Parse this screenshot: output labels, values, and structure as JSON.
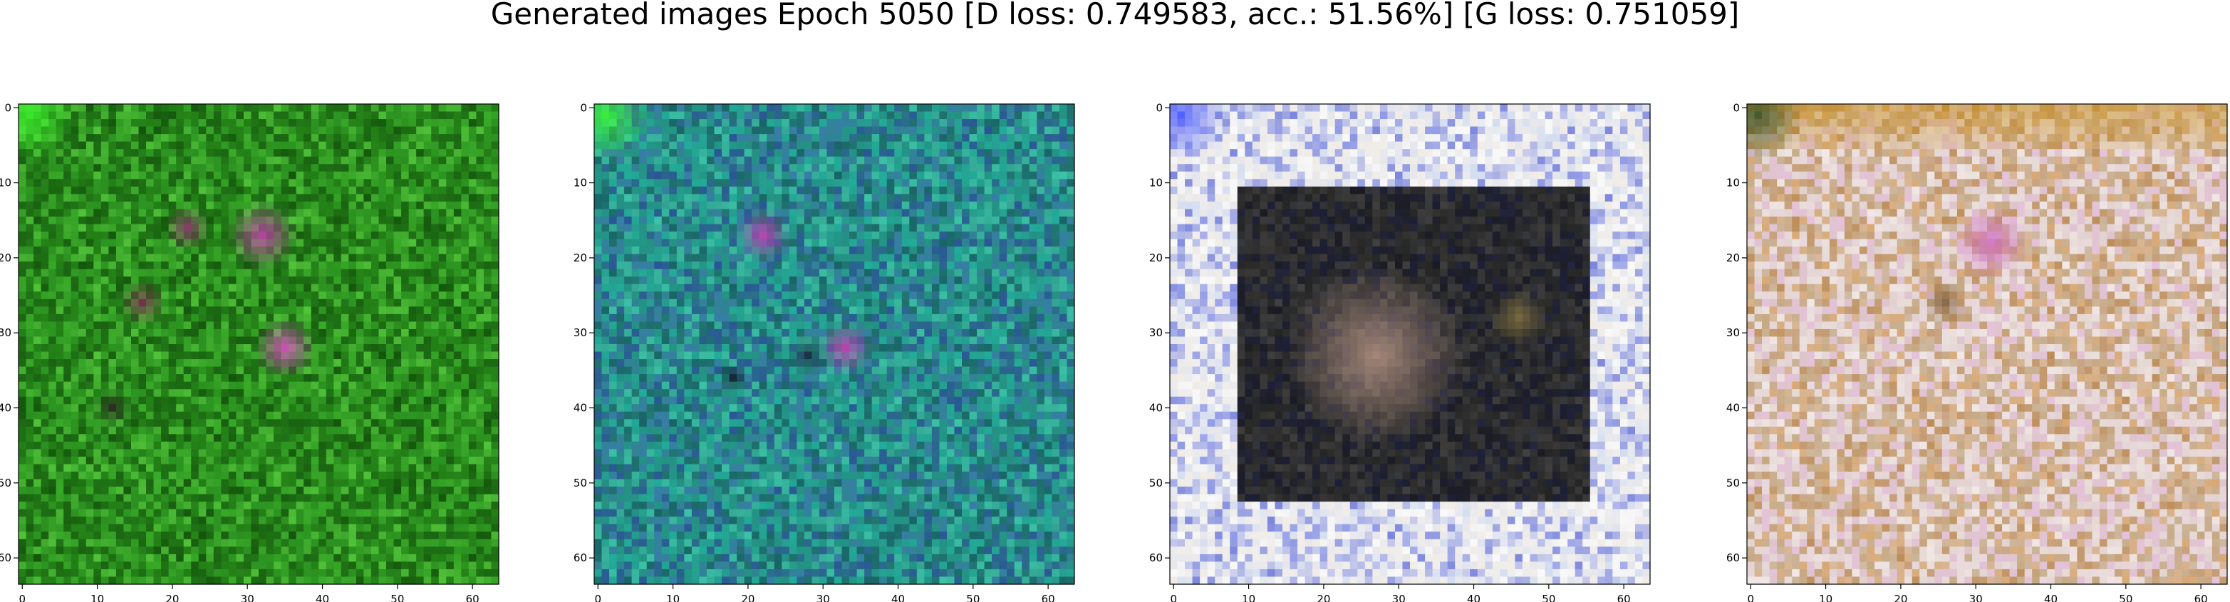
{
  "figure": {
    "title": "Generated images Epoch 5050 [D loss: 0.749583, acc.: 51.56%] [G loss: 0.751059]"
  },
  "chart_data": [
    {
      "type": "heatmap",
      "title": "",
      "xlabel": "",
      "ylabel": "",
      "xlim": [
        -0.5,
        63.5
      ],
      "ylim": [
        63.5,
        -0.5
      ],
      "xticks": [
        0,
        10,
        20,
        30,
        40,
        50,
        60
      ],
      "yticks": [
        0,
        10,
        20,
        30,
        40,
        50,
        60
      ],
      "grid": false,
      "base_color": "#2a8a1e",
      "palette": [
        "#1f7a12",
        "#2e9a22",
        "#3fb52d",
        "#145a0c",
        "#5ad040",
        "#0f4a08"
      ],
      "blobs": [
        {
          "x": 32,
          "y": 17,
          "r": 4.5,
          "color": "#c040a8"
        },
        {
          "x": 22,
          "y": 16,
          "r": 3,
          "color": "#8a3a6a"
        },
        {
          "x": 16,
          "y": 26,
          "r": 3,
          "color": "#7a3050"
        },
        {
          "x": 35,
          "y": 32,
          "r": 4,
          "color": "#d850c0"
        },
        {
          "x": 12,
          "y": 40,
          "r": 2.5,
          "color": "#2a2a20"
        }
      ],
      "corner_glow": "#40ff30"
    },
    {
      "type": "heatmap",
      "title": "",
      "xlabel": "",
      "ylabel": "",
      "xlim": [
        -0.5,
        63.5
      ],
      "ylim": [
        63.5,
        -0.5
      ],
      "xticks": [
        0,
        10,
        20,
        30,
        40,
        50,
        60
      ],
      "yticks": [
        0,
        10,
        20,
        30,
        40,
        50,
        60
      ],
      "grid": false,
      "base_color": "#2a8a80",
      "palette": [
        "#1f9a8a",
        "#3a7ab0",
        "#20b5a0",
        "#145a60",
        "#40d0b0",
        "#2a4a9a"
      ],
      "blobs": [
        {
          "x": 22,
          "y": 17,
          "r": 3.5,
          "color": "#c040b0"
        },
        {
          "x": 33,
          "y": 32,
          "r": 3.5,
          "color": "#c040b0"
        },
        {
          "x": 28,
          "y": 33,
          "r": 2.5,
          "color": "#1a2a40"
        },
        {
          "x": 18,
          "y": 36,
          "r": 2,
          "color": "#102030"
        }
      ],
      "corner_glow": "#40ff30"
    },
    {
      "type": "heatmap",
      "title": "",
      "xlabel": "",
      "ylabel": "",
      "xlim": [
        -0.5,
        63.5
      ],
      "ylim": [
        63.5,
        -0.5
      ],
      "xticks": [
        0,
        10,
        20,
        30,
        40,
        50,
        60
      ],
      "yticks": [
        0,
        10,
        20,
        30,
        40,
        50,
        60
      ],
      "grid": false,
      "base_color": "#1a1a1a",
      "palette": [
        "#e0e0e8",
        "#5060e0",
        "#ffffff",
        "#c0d0f0",
        "#3040d0",
        "#f0e8e0"
      ],
      "blobs": [
        {
          "x": 27,
          "y": 33,
          "r": 12,
          "color": "#b09080"
        },
        {
          "x": 46,
          "y": 28,
          "r": 4,
          "color": "#807040"
        }
      ],
      "frame": {
        "inner": [
          8,
          10,
          56,
          53
        ],
        "color": "#f0f0f0"
      },
      "corner_glow": "#4050ff"
    },
    {
      "type": "heatmap",
      "title": "",
      "xlabel": "",
      "ylabel": "",
      "xlim": [
        -0.5,
        63.5
      ],
      "ylim": [
        63.5,
        -0.5
      ],
      "xticks": [
        0,
        10,
        20,
        30,
        40,
        50,
        60
      ],
      "yticks": [
        0,
        10,
        20,
        30,
        40,
        50,
        60
      ],
      "grid": false,
      "base_color": "#d8c8c0",
      "palette": [
        "#f0e0e8",
        "#d8a060",
        "#e8c0e0",
        "#c0a070",
        "#f8f0f0",
        "#b88040"
      ],
      "blobs": [
        {
          "x": 32,
          "y": 18,
          "r": 5,
          "color": "#d070c0"
        },
        {
          "x": 26,
          "y": 26,
          "r": 3,
          "color": "#806040"
        }
      ],
      "top_band": "#c89020",
      "corner_glow": "#2a4a20"
    }
  ]
}
